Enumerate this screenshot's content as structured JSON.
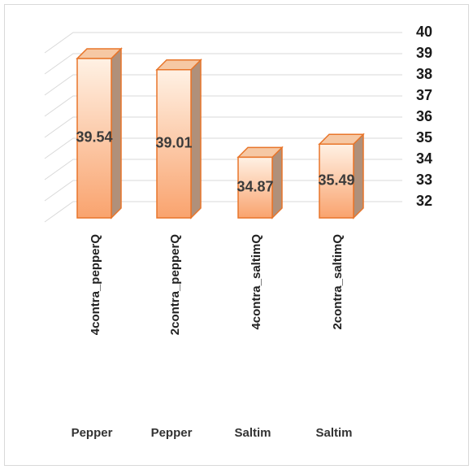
{
  "chart_data": {
    "type": "bar3d",
    "categories": [
      "4contra_pepperQ",
      "2contra_pepperQ",
      "4contra_saltimQ",
      "2contra_saltimQ"
    ],
    "groups": [
      "Pepper",
      "Pepper",
      "Saltim",
      "Saltim"
    ],
    "values": [
      39.54,
      39.01,
      34.87,
      35.49
    ],
    "color": "#f9a36e",
    "ylim": [
      32,
      40
    ],
    "yticks": [
      32,
      33,
      34,
      35,
      36,
      37,
      38,
      39,
      40
    ],
    "grid": true
  }
}
